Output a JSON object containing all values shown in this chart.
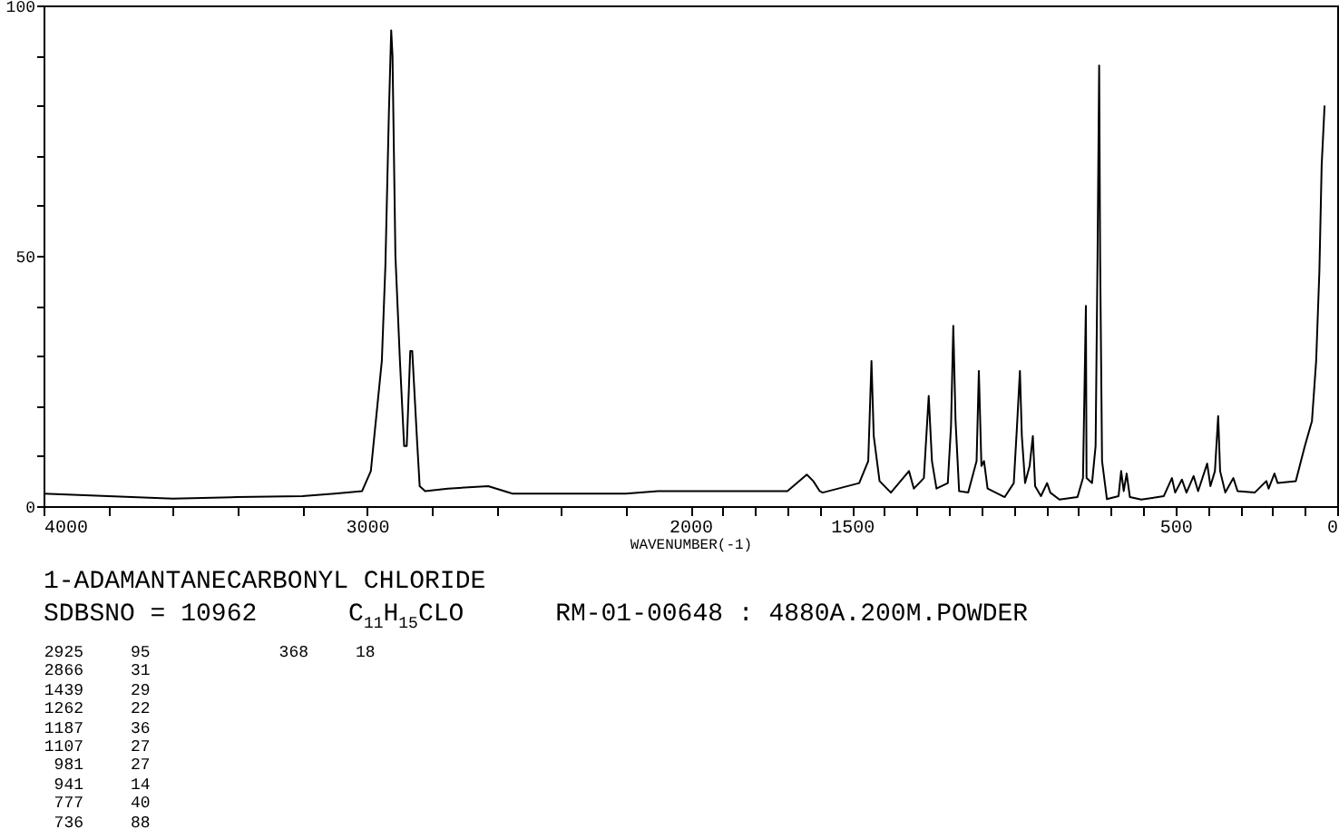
{
  "chart_data": {
    "type": "line",
    "title": "1-ADAMANTANECARBONYL CHLORIDE",
    "subtitle": "SDBSNO = 10962      C$_{11}$H$_{15}$CLO      RM-01-00648 : 4880A.200M.POWDER",
    "xlabel": "WAVENUMBER(-1)",
    "x": [
      4000,
      3800,
      3600,
      3400,
      3200,
      3100,
      3015,
      2988,
      2971,
      2954,
      2943,
      2932,
      2925,
      2921,
      2912,
      2898,
      2885,
      2877,
      2866,
      2860,
      2845,
      2837,
      2820,
      2750,
      2625,
      2550,
      2400,
      2200,
      2100,
      2000,
      1921,
      1800,
      1700,
      1640,
      1620,
      1600,
      1591,
      1478,
      1450,
      1440,
      1433,
      1415,
      1380,
      1324,
      1309,
      1278,
      1263,
      1253,
      1239,
      1204,
      1194,
      1187,
      1180,
      1169,
      1141,
      1115,
      1108,
      1100,
      1092,
      1081,
      1028,
      1000,
      990,
      981,
      975,
      965,
      951,
      941,
      934,
      916,
      897,
      887,
      859,
      803,
      786,
      777,
      775,
      758,
      747,
      741,
      736,
      733,
      727,
      712,
      676,
      668,
      660,
      651,
      641,
      606,
      536,
      511,
      501,
      480,
      466,
      444,
      430,
      402,
      392,
      378,
      368,
      362,
      346,
      321,
      308,
      255,
      219,
      212,
      194,
      184,
      128,
      100,
      78,
      65,
      55,
      48,
      39
    ],
    "series": [
      {
        "color": "#000000",
        "values": [
          2.5,
          2,
          1.5,
          1.8,
          2,
          2.5,
          3,
          7,
          18,
          29,
          48,
          79,
          95,
          90,
          50,
          29,
          12,
          12,
          31,
          31,
          13,
          4,
          3,
          3.5,
          4,
          2.5,
          2.5,
          2.5,
          3,
          3,
          3,
          3,
          3,
          6.3,
          5,
          3,
          2.7,
          4.6,
          9,
          29,
          14,
          5,
          2.7,
          7,
          3.5,
          5.6,
          22,
          9,
          3.5,
          4.6,
          16,
          36,
          17,
          3,
          2.7,
          9,
          27,
          8,
          9,
          3.5,
          1.8,
          4.6,
          16,
          27,
          14,
          4.6,
          8,
          14,
          4,
          2,
          4.6,
          2.7,
          1.3,
          1.8,
          5.6,
          40,
          5.6,
          4.6,
          12,
          50,
          88,
          50,
          9,
          1.4,
          2,
          7,
          3,
          6.5,
          1.8,
          1.3,
          2,
          5.6,
          2.7,
          5.3,
          2.7,
          6,
          3,
          8.5,
          4,
          7,
          18,
          7,
          2.7,
          5.6,
          3,
          2.7,
          5,
          3.5,
          6.5,
          4.6,
          5,
          12,
          17,
          29,
          47,
          68,
          80
        ]
      }
    ],
    "xlim": [
      4000,
      0
    ],
    "xticks": [
      4000,
      {
        "value": 3800,
        "label": null
      },
      {
        "value": 3600,
        "label": null
      },
      {
        "value": 3400,
        "label": null
      },
      {
        "value": 3200,
        "label": null
      },
      3000,
      {
        "value": 2800,
        "label": null
      },
      {
        "value": 2600,
        "label": null
      },
      {
        "value": 2400,
        "label": null
      },
      {
        "value": 2200,
        "label": null
      },
      2000,
      {
        "value": 1900,
        "label": null
      },
      {
        "value": 1800,
        "label": null
      },
      {
        "value": 1700,
        "label": null
      },
      {
        "value": 1600,
        "label": null
      },
      1500,
      {
        "value": 1400,
        "label": null
      },
      {
        "value": 1300,
        "label": null
      },
      {
        "value": 1200,
        "label": null
      },
      {
        "value": 1100,
        "label": null
      },
      {
        "value": 1000,
        "label": null
      },
      {
        "value": 900,
        "label": null
      },
      {
        "value": 800,
        "label": null
      },
      {
        "value": 700,
        "label": null
      },
      {
        "value": 600,
        "label": null
      },
      500,
      {
        "value": 400,
        "label": null
      },
      {
        "value": 300,
        "label": null
      },
      {
        "value": 200,
        "label": null
      },
      {
        "value": 100,
        "label": null
      },
      0
    ],
    "ylim": [
      0,
      100
    ],
    "yticks": [
      0,
      {
        "value": 10,
        "label": null
      },
      {
        "value": 20,
        "label": null
      },
      {
        "value": 30,
        "label": null
      },
      {
        "value": 40,
        "label": null
      },
      50,
      {
        "value": 60,
        "label": null
      },
      {
        "value": 70,
        "label": null
      },
      {
        "value": 80,
        "label": null
      },
      {
        "value": 90,
        "label": null
      },
      100
    ],
    "annotations": [
      "2925 95",
      "2866 31",
      "1439 29",
      "1262 22",
      "1187 36",
      "1107 27",
      "981 27",
      "941 14",
      "777 40",
      "736 88",
      "368 18"
    ]
  }
}
